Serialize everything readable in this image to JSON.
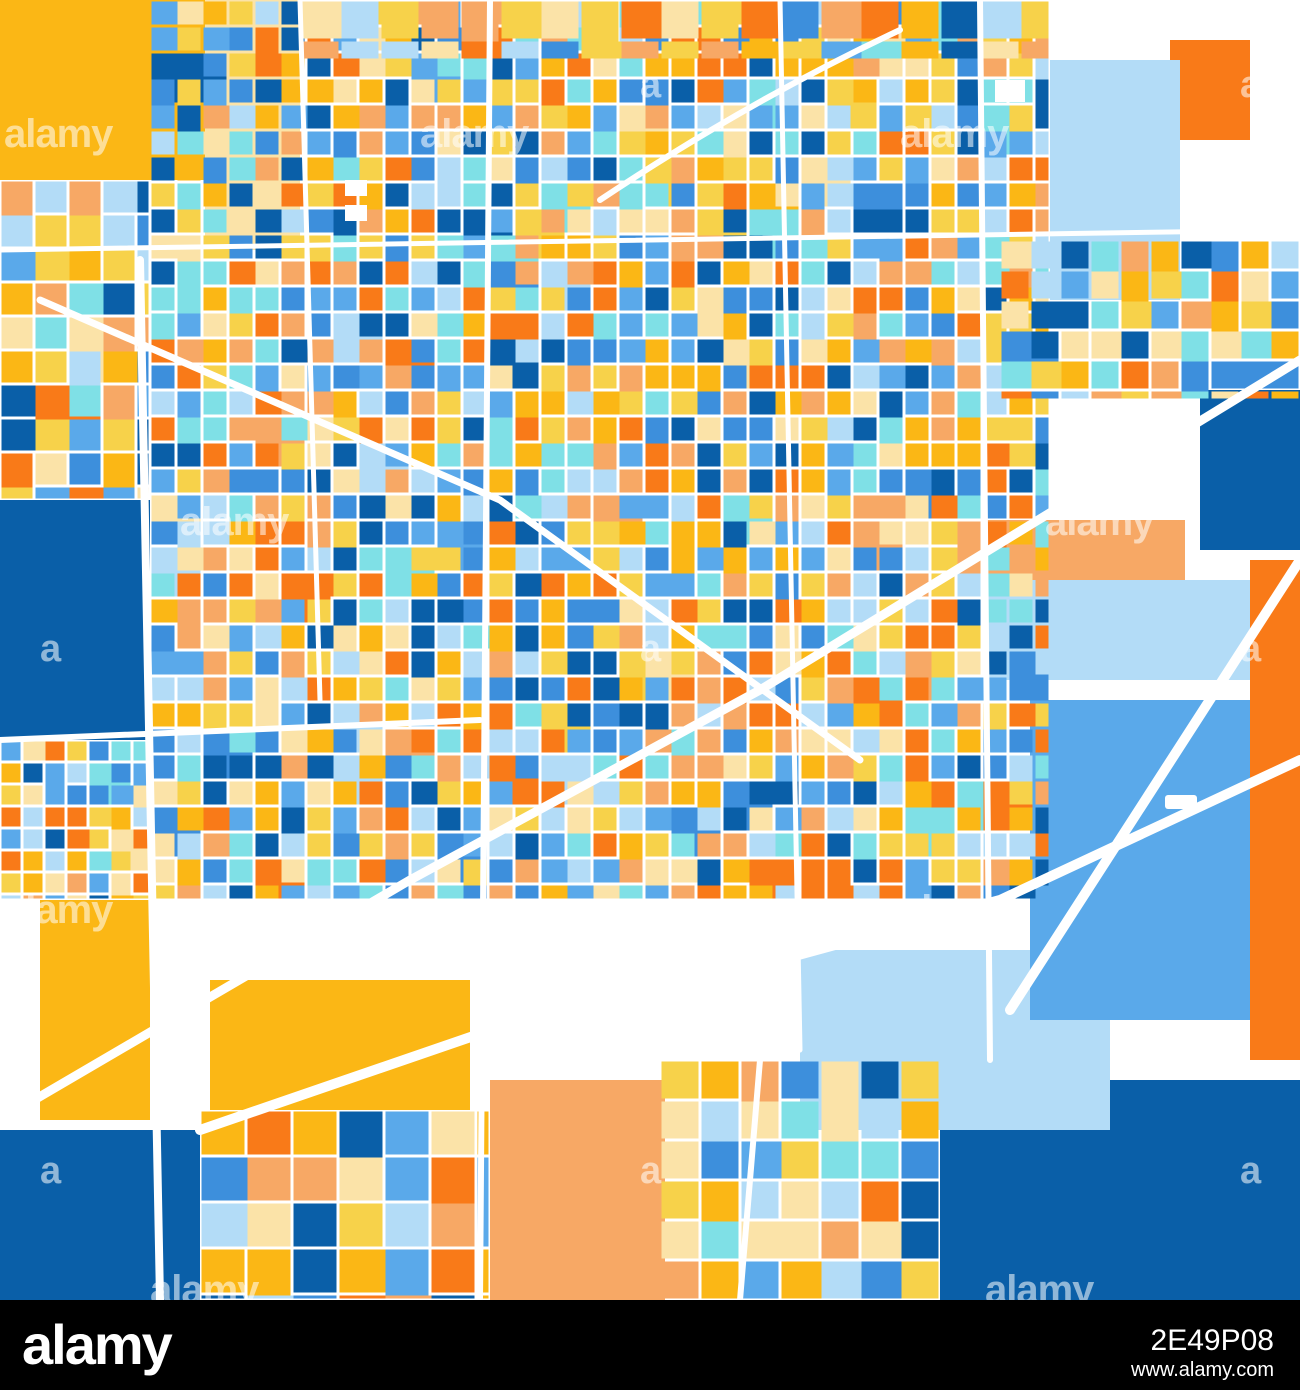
{
  "map": {
    "palette": {
      "dark_blue": "#0a5fa8",
      "mid_blue": "#3d8fdc",
      "sky_blue": "#5aa9ea",
      "light_blue": "#b3dcf7",
      "cyan": "#7fe0e6",
      "pale_yellow": "#fbe3a8",
      "yellow": "#f7d24a",
      "gold": "#fbb715",
      "peach": "#f7a865",
      "orange": "#f97a18",
      "road": "#ffffff"
    },
    "watermarks": [
      "alamy",
      "alamy",
      "alamy",
      "alamy",
      "alamy",
      "alamy",
      "alamy",
      "alamy",
      "alamy",
      "a",
      "a",
      "a",
      "a",
      "a",
      "a",
      "a",
      "a"
    ]
  },
  "footer": {
    "logo": "alamy",
    "image_id": "2E49P08",
    "url": "www.alamy.com"
  }
}
